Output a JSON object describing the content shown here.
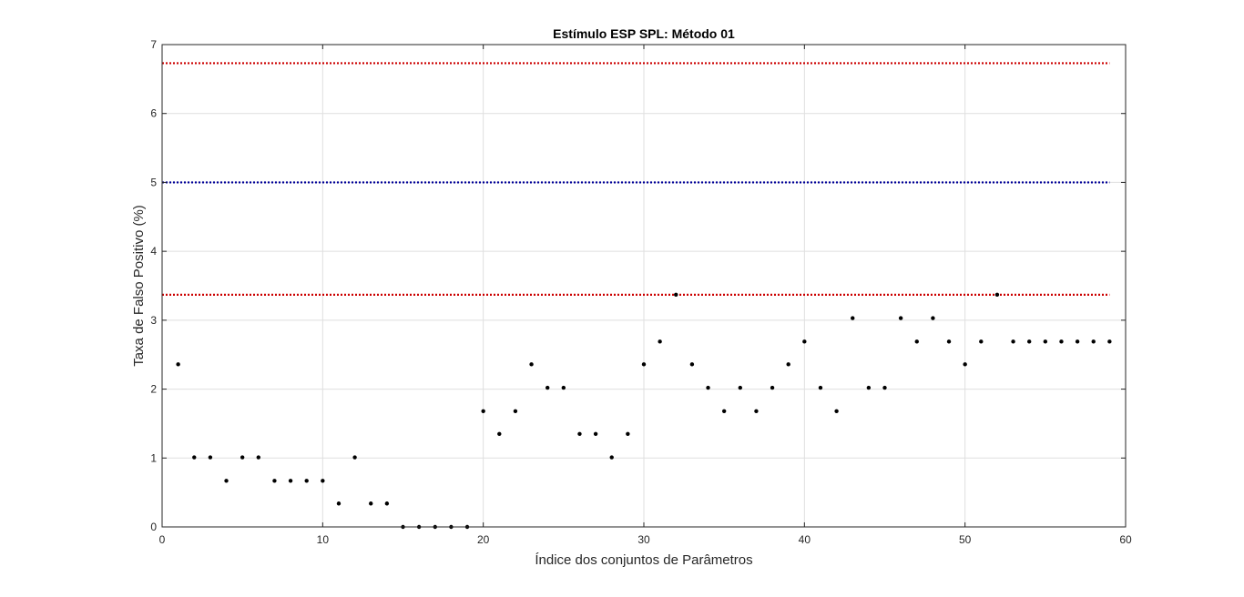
{
  "chart_data": {
    "type": "scatter",
    "title": "Estímulo ESP SPL: Método 01",
    "xlabel": "Índice dos conjuntos de Parâmetros",
    "ylabel": "Taxa de Falso Positivo (%)",
    "xlim": [
      0,
      60
    ],
    "ylim": [
      0,
      7
    ],
    "xticks": [
      0,
      10,
      20,
      30,
      40,
      50,
      60
    ],
    "yticks": [
      0,
      1,
      2,
      3,
      4,
      5,
      6,
      7
    ],
    "grid": true,
    "marker_color": "#000000",
    "points": {
      "x": [
        1,
        2,
        3,
        4,
        5,
        6,
        7,
        8,
        9,
        10,
        11,
        12,
        13,
        14,
        15,
        16,
        17,
        18,
        19,
        20,
        21,
        22,
        23,
        24,
        25,
        26,
        27,
        28,
        29,
        30,
        31,
        32,
        33,
        34,
        35,
        36,
        37,
        38,
        39,
        40,
        41,
        42,
        43,
        44,
        45,
        46,
        47,
        48,
        49,
        50,
        51,
        52,
        53,
        54,
        55,
        56,
        57,
        58,
        59
      ],
      "y": [
        2.36,
        1.01,
        1.01,
        0.67,
        1.01,
        1.01,
        0.67,
        0.67,
        0.67,
        0.67,
        0.34,
        1.01,
        0.34,
        0.34,
        0,
        0,
        0,
        0,
        0,
        1.68,
        1.35,
        1.68,
        2.36,
        2.02,
        2.02,
        1.35,
        1.35,
        1.01,
        1.35,
        2.36,
        2.69,
        3.37,
        2.36,
        2.02,
        1.68,
        2.02,
        1.68,
        2.02,
        2.36,
        2.69,
        2.02,
        1.68,
        3.03,
        2.02,
        2.02,
        3.03,
        2.69,
        3.03,
        2.69,
        2.36,
        2.69,
        3.37,
        2.69,
        2.69,
        2.69,
        2.69,
        2.69,
        2.69,
        2.69
      ]
    },
    "reference_lines": [
      {
        "y": 6.73,
        "x_range": [
          0,
          59
        ],
        "color": "#cc0000",
        "style": "dotted"
      },
      {
        "y": 5.0,
        "x_range": [
          0,
          59
        ],
        "color": "#000099",
        "style": "dotted"
      },
      {
        "y": 3.37,
        "x_range": [
          0,
          59
        ],
        "color": "#cc0000",
        "style": "dotted"
      }
    ]
  }
}
